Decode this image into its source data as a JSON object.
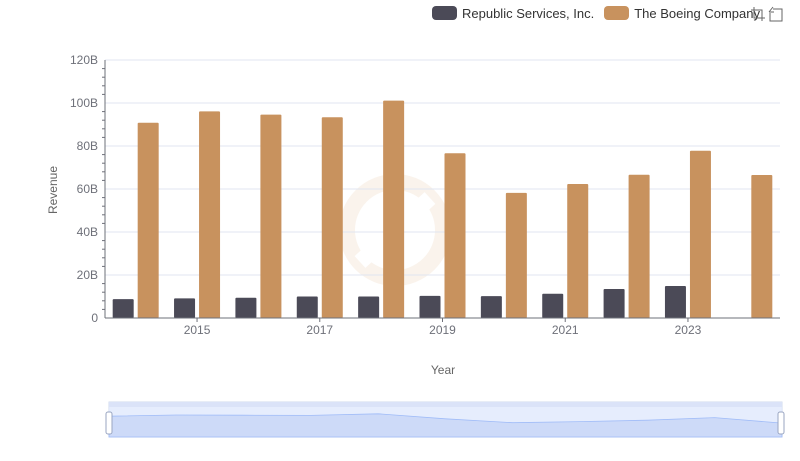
{
  "legend": [
    {
      "name": "Republic Services, Inc.",
      "color": "#4b4a57"
    },
    {
      "name": "The Boeing Company",
      "color": "#c8925e"
    }
  ],
  "toolbar": {
    "icons": [
      "zoom-select-icon",
      "zoom-reset-icon"
    ]
  },
  "chart_data": {
    "type": "bar",
    "xlabel": "Year",
    "ylabel": "Revenue",
    "x": [
      2014,
      2015,
      2016,
      2017,
      2018,
      2019,
      2020,
      2021,
      2022,
      2023,
      2024
    ],
    "x_tick_labels": [
      "2015",
      "2017",
      "2019",
      "2021",
      "2023"
    ],
    "y_tick_labels": [
      "0",
      "20B",
      "40B",
      "60B",
      "80B",
      "100B",
      "120B"
    ],
    "ylim": [
      0,
      120
    ],
    "grid": true,
    "legend_position": "top-right",
    "series": [
      {
        "name": "Republic Services, Inc.",
        "color": "#4b4a57",
        "values": [
          8.8,
          9.1,
          9.4,
          10.0,
          10.0,
          10.3,
          10.2,
          11.3,
          13.5,
          14.9,
          null
        ]
      },
      {
        "name": "The Boeing Company",
        "color": "#c8925e",
        "values": [
          90.8,
          96.1,
          94.6,
          93.4,
          101.1,
          76.6,
          58.2,
          62.3,
          66.6,
          77.8,
          66.5
        ]
      }
    ],
    "dataZoom": {
      "start": 0,
      "end": 100
    }
  }
}
